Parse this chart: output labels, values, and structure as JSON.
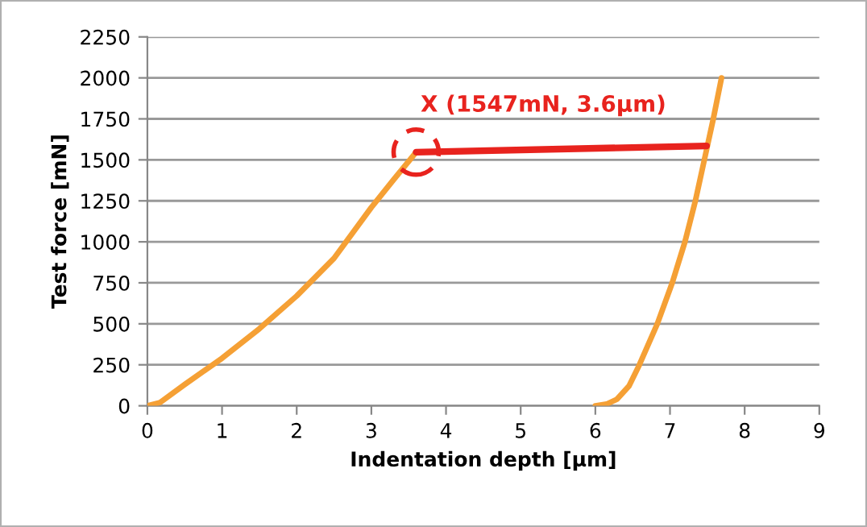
{
  "chart_data": {
    "type": "line",
    "xlabel": "Indentation depth [µm]",
    "ylabel": "Test force [mN]",
    "xlim": [
      0,
      9
    ],
    "xticks": [
      0,
      1,
      2,
      3,
      4,
      5,
      6,
      7,
      8,
      9
    ],
    "ylim": [
      0,
      2250
    ],
    "yticks": [
      0,
      250,
      500,
      750,
      1000,
      1250,
      1500,
      1750,
      2000,
      2250
    ],
    "grid": "y",
    "legend": false,
    "line_style": "solid",
    "series": [
      {
        "color": "#f5a035",
        "x": [
          0,
          0.17,
          0.5,
          1,
          1.5,
          2,
          2.5,
          3,
          3.3,
          3.6
        ],
        "values": [
          0,
          20,
          130,
          290,
          470,
          670,
          900,
          1210,
          1380,
          1547
        ]
      },
      {
        "color": "#f5a035",
        "x": [
          6.0,
          6.15,
          6.29,
          6.45,
          6.59,
          6.83,
          7.03,
          7.2,
          7.34,
          7.46,
          7.58,
          7.69
        ],
        "values": [
          0,
          10,
          40,
          120,
          250,
          500,
          750,
          1000,
          1250,
          1500,
          1750,
          2000
        ]
      },
      {
        "color": "#e8231e",
        "x": [
          3.6,
          7.49
        ],
        "values": [
          1547,
          1585
        ]
      }
    ],
    "annotations": [
      {
        "text": "X (1547mN, 3.6µm)",
        "x": 3.6,
        "y": 1547
      }
    ]
  }
}
